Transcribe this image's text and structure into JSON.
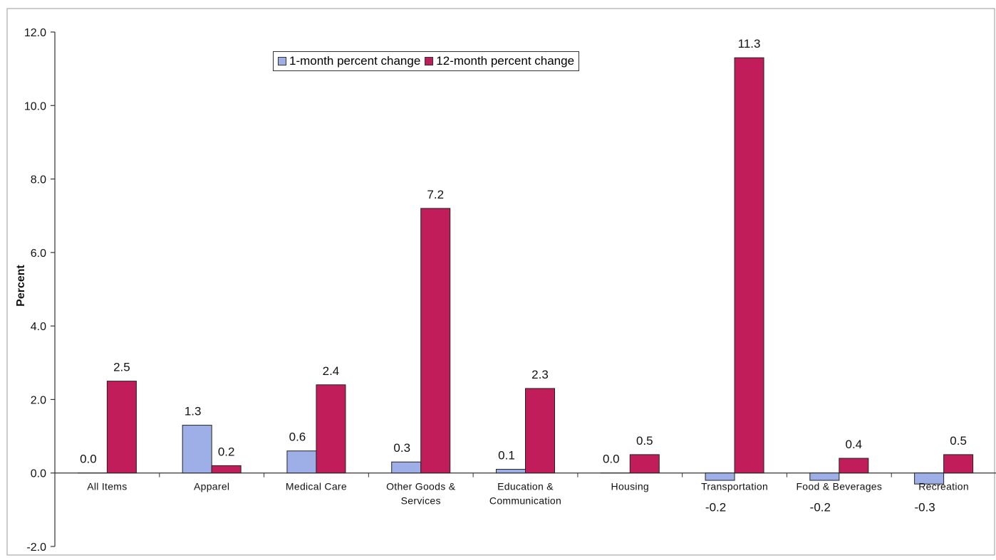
{
  "colors": {
    "one_month": "#9dafe6",
    "twelve_month": "#c21d5b",
    "axis": "#333333"
  },
  "legend": {
    "items": [
      {
        "label": "1-month percent change",
        "color_key": "one_month"
      },
      {
        "label": "12-month percent change",
        "color_key": "twelve_month"
      }
    ],
    "placement": "top-center"
  },
  "chart_data": {
    "type": "bar",
    "title": "",
    "xlabel": "",
    "ylabel": "Percent",
    "ylim": [
      -2.0,
      12.0
    ],
    "yticks": [
      "-2.0",
      "0.0",
      "2.0",
      "4.0",
      "6.0",
      "8.0",
      "10.0",
      "12.0"
    ],
    "grid": false,
    "categories": [
      [
        "All Items"
      ],
      [
        "Apparel"
      ],
      [
        "Medical Care"
      ],
      [
        "Other Goods &",
        "Services"
      ],
      [
        "Education &",
        "Communication"
      ],
      [
        "Housing"
      ],
      [
        "Transportation"
      ],
      [
        "Food & Beverages"
      ],
      [
        "Recreation"
      ]
    ],
    "series": [
      {
        "name": "1-month percent change",
        "values": [
          0.0,
          1.3,
          0.6,
          0.3,
          0.1,
          0.0,
          -0.2,
          -0.2,
          -0.3
        ],
        "labels": [
          "0.0",
          "1.3",
          "0.6",
          "0.3",
          "0.1",
          "0.0",
          "-0.2",
          "-0.2",
          "-0.3"
        ]
      },
      {
        "name": "12-month percent change",
        "values": [
          2.5,
          0.2,
          2.4,
          7.2,
          2.3,
          0.5,
          11.3,
          0.4,
          0.5
        ],
        "labels": [
          "2.5",
          "0.2",
          "2.4",
          "7.2",
          "2.3",
          "0.5",
          "11.3",
          "0.4",
          "0.5"
        ]
      }
    ]
  }
}
